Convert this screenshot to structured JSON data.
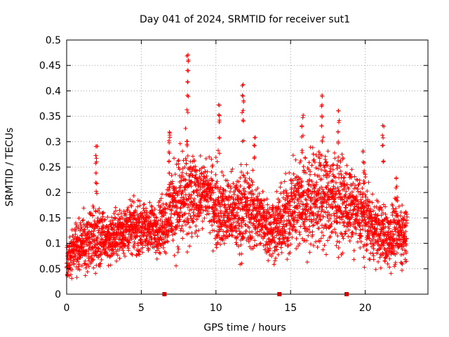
{
  "chart_data": {
    "type": "scatter",
    "title": "Day 041 of 2024, SRMTID for receiver sut1",
    "xlabel": "GPS time / hours",
    "ylabel": "SRMTID / TECUs",
    "xlim": [
      0,
      24.2
    ],
    "ylim": [
      0,
      0.5
    ],
    "xticks": [
      0,
      5,
      10,
      15,
      20
    ],
    "xtick_labels": [
      "0",
      "5",
      "10",
      "15",
      "20"
    ],
    "yticks": [
      0,
      0.05,
      0.1,
      0.15,
      0.2,
      0.25,
      0.3,
      0.35,
      0.4,
      0.45,
      0.5
    ],
    "ytick_labels": [
      "0",
      "0.05",
      "0.1",
      "0.15",
      "0.2",
      "0.25",
      "0.3",
      "0.35",
      "0.4",
      "0.45",
      "0.5"
    ],
    "grid": true,
    "marker": "+",
    "color": "#ff0000",
    "gap_markers_x": [
      6.55,
      14.25,
      18.75
    ],
    "gap_marker_color": "#cc0000",
    "series": [
      {
        "name": "SRMTID",
        "envelope": {
          "hours": [
            0,
            0.5,
            1,
            1.5,
            2,
            2.5,
            3,
            3.5,
            4,
            4.5,
            5,
            5.5,
            6,
            6.5,
            7,
            7.5,
            8,
            8.5,
            9,
            9.5,
            10,
            10.5,
            11,
            11.5,
            12,
            12.5,
            13,
            13.5,
            14,
            14.5,
            15,
            15.5,
            16,
            16.5,
            17,
            17.5,
            18,
            18.5,
            19,
            19.5,
            20,
            20.5,
            21,
            21.5,
            22,
            22.5
          ],
          "typical": [
            0.06,
            0.09,
            0.1,
            0.1,
            0.11,
            0.11,
            0.11,
            0.12,
            0.13,
            0.13,
            0.13,
            0.13,
            0.13,
            0.14,
            0.17,
            0.18,
            0.19,
            0.19,
            0.2,
            0.2,
            0.17,
            0.16,
            0.16,
            0.16,
            0.17,
            0.16,
            0.15,
            0.13,
            0.13,
            0.14,
            0.17,
            0.18,
            0.18,
            0.19,
            0.19,
            0.19,
            0.19,
            0.18,
            0.17,
            0.16,
            0.15,
            0.13,
            0.12,
            0.11,
            0.12,
            0.12
          ],
          "spread": [
            0.03,
            0.04,
            0.05,
            0.05,
            0.06,
            0.04,
            0.04,
            0.04,
            0.04,
            0.04,
            0.04,
            0.04,
            0.04,
            0.05,
            0.07,
            0.08,
            0.09,
            0.07,
            0.05,
            0.05,
            0.07,
            0.06,
            0.06,
            0.07,
            0.07,
            0.06,
            0.05,
            0.05,
            0.05,
            0.06,
            0.07,
            0.08,
            0.08,
            0.08,
            0.08,
            0.08,
            0.08,
            0.07,
            0.06,
            0.06,
            0.06,
            0.05,
            0.05,
            0.05,
            0.05,
            0.05
          ]
        },
        "spikes": [
          {
            "x": 2.0,
            "values": [
              0.2,
              0.22,
              0.24,
              0.26,
              0.27,
              0.29
            ]
          },
          {
            "x": 6.9,
            "values": [
              0.24,
              0.26,
              0.28,
              0.3,
              0.31,
              0.32
            ]
          },
          {
            "x": 8.1,
            "values": [
              0.3,
              0.36,
              0.39,
              0.42,
              0.44,
              0.46,
              0.47
            ]
          },
          {
            "x": 10.2,
            "values": [
              0.28,
              0.31,
              0.34,
              0.35,
              0.37
            ]
          },
          {
            "x": 11.8,
            "values": [
              0.3,
              0.34,
              0.36,
              0.38,
              0.39,
              0.41
            ]
          },
          {
            "x": 12.6,
            "values": [
              0.27,
              0.29,
              0.31
            ]
          },
          {
            "x": 15.8,
            "values": [
              0.28,
              0.31,
              0.33,
              0.35
            ]
          },
          {
            "x": 17.1,
            "values": [
              0.3,
              0.33,
              0.35,
              0.37,
              0.39
            ]
          },
          {
            "x": 18.2,
            "values": [
              0.3,
              0.32,
              0.34,
              0.36
            ]
          },
          {
            "x": 19.9,
            "values": [
              0.22,
              0.24,
              0.26,
              0.28
            ]
          },
          {
            "x": 21.2,
            "values": [
              0.26,
              0.29,
              0.31,
              0.33
            ]
          },
          {
            "x": 22.1,
            "values": [
              0.19,
              0.21,
              0.23
            ]
          }
        ]
      }
    ]
  }
}
